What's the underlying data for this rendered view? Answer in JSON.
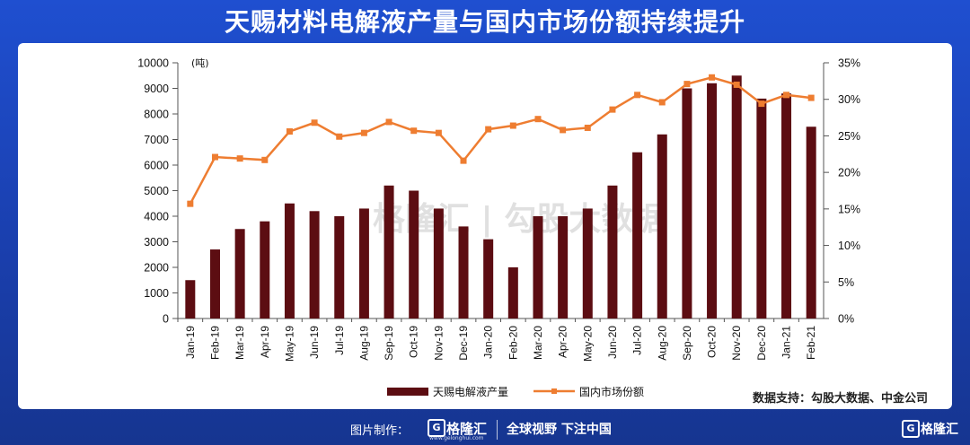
{
  "title": "天赐材料电解液产量与国内市场份额持续提升",
  "chart_data": {
    "type": "bar+line",
    "categories": [
      "Jan-19",
      "Feb-19",
      "Mar-19",
      "Apr-19",
      "May-19",
      "Jun-19",
      "Jul-19",
      "Aug-19",
      "Sep-19",
      "Oct-19",
      "Nov-19",
      "Dec-19",
      "Jan-20",
      "Feb-20",
      "Mar-20",
      "Apr-20",
      "May-20",
      "Jun-20",
      "Jul-20",
      "Aug-20",
      "Sep-20",
      "Oct-20",
      "Nov-20",
      "Dec-20",
      "Jan-21",
      "Feb-21"
    ],
    "y_unit": "(吨)",
    "y_ticks": [
      "10000",
      "9000",
      "8000",
      "7000",
      "6000",
      "5000",
      "4000",
      "3000",
      "2000",
      "1000",
      "0"
    ],
    "y2_ticks": [
      "35%",
      "30%",
      "25%",
      "20%",
      "15%",
      "10%",
      "5%",
      "0%"
    ],
    "ylim": [
      0,
      10000
    ],
    "y2lim": [
      0,
      35
    ],
    "series": [
      {
        "name": "天赐电解液产量",
        "type": "bar",
        "axis": "left",
        "color": "#5c0d12",
        "values": [
          1500,
          2700,
          3500,
          3800,
          4500,
          4200,
          4000,
          4300,
          5200,
          5000,
          4300,
          3600,
          3100,
          2000,
          4000,
          4000,
          4300,
          5200,
          6500,
          7200,
          9000,
          9200,
          9500,
          8600,
          8800,
          7500
        ]
      },
      {
        "name": "国内市场份额",
        "type": "line",
        "axis": "right",
        "color": "#ee7d31",
        "values": [
          15.7,
          22.1,
          21.9,
          21.7,
          25.6,
          26.8,
          24.9,
          25.4,
          26.9,
          25.7,
          25.4,
          21.6,
          25.9,
          26.4,
          27.3,
          25.8,
          26.1,
          28.6,
          30.6,
          29.6,
          32.1,
          33.0,
          32.0,
          29.4,
          30.6,
          30.2
        ]
      }
    ],
    "source": "数据支持：勾股大数据、中金公司",
    "watermark": "格隆汇 | 勾股大数据"
  },
  "footer": {
    "made_by": "图片制作：",
    "brand": "格隆汇",
    "brand_url": "www.gelonghui.com",
    "slogan": "全球视野 下注中国",
    "brand2": "格隆汇",
    "logo_letter": "G"
  }
}
